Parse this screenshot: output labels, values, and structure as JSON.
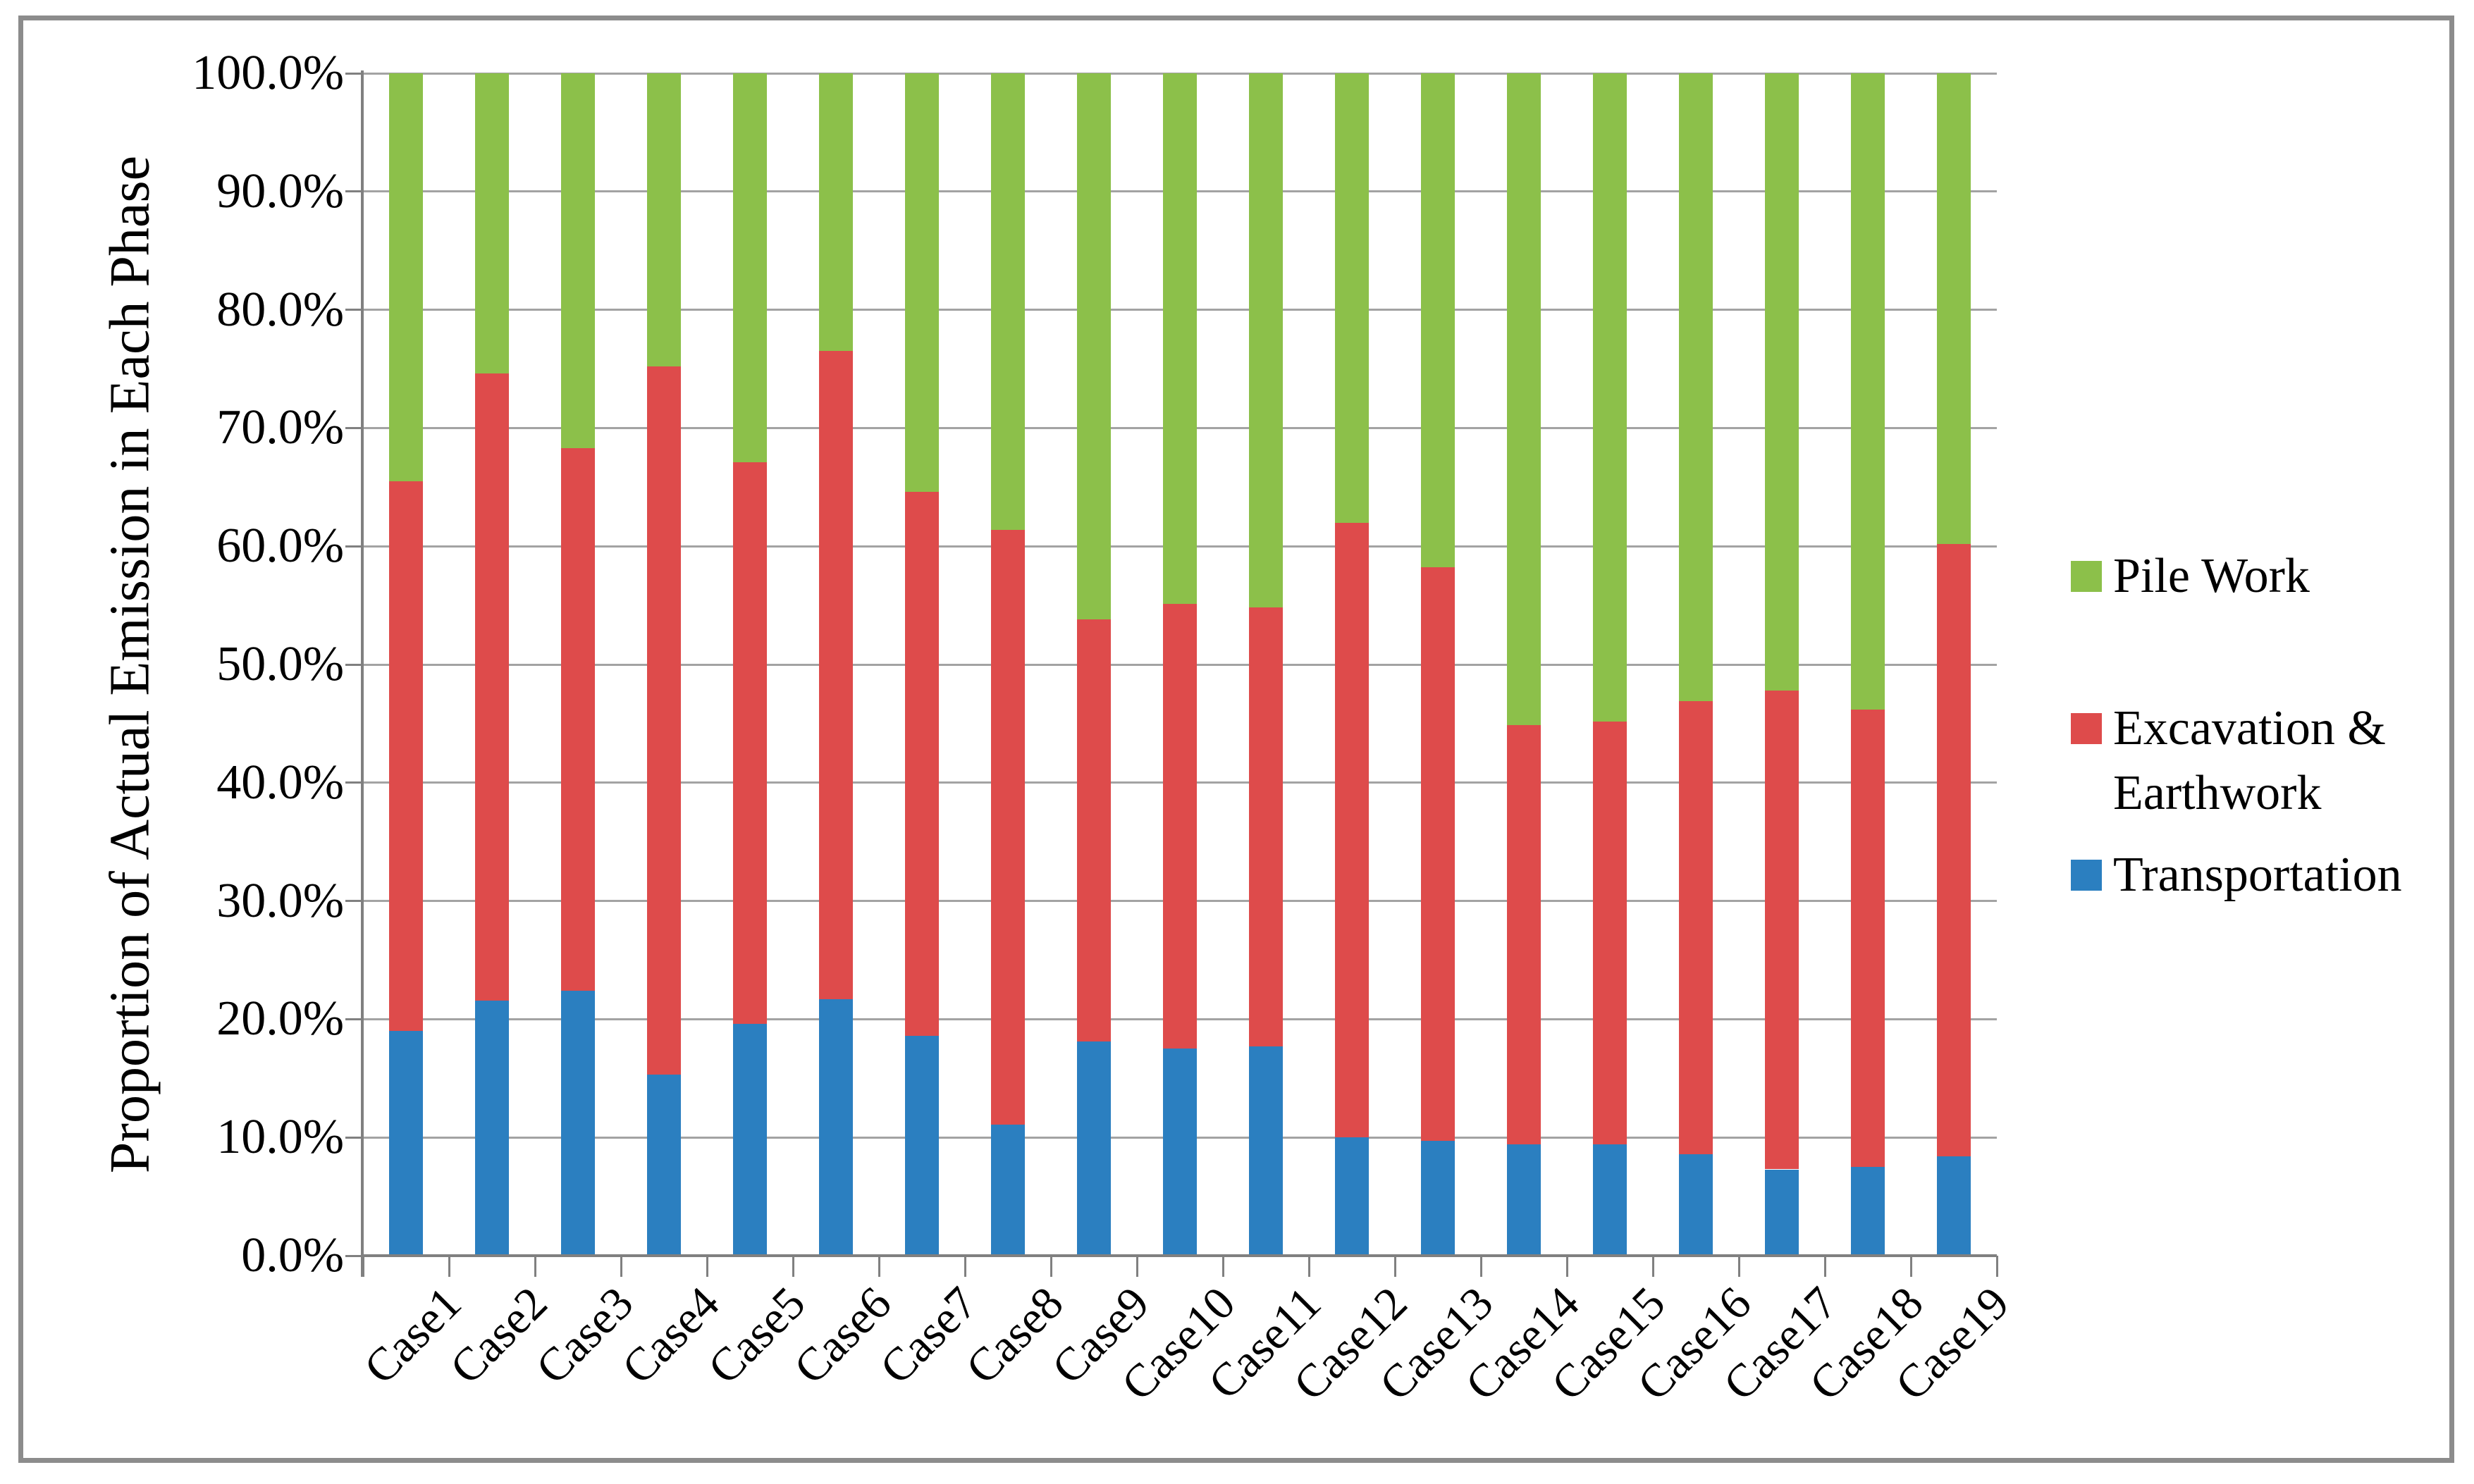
{
  "chart_data": {
    "type": "bar",
    "stacked": true,
    "title": "",
    "ylabel": "Proportion of Actual Emission in Each Phase",
    "xlabel": "",
    "ylim": [
      0,
      100
    ],
    "grid": "horizontal",
    "legend_position": "right",
    "y_tick_labels": [
      "0.0%",
      "10.0%",
      "20.0%",
      "30.0%",
      "40.0%",
      "50.0%",
      "60.0%",
      "70.0%",
      "80.0%",
      "90.0%",
      "100.0%"
    ],
    "categories": [
      "Case1",
      "Case2",
      "Case3",
      "Case4",
      "Case5",
      "Case6",
      "Case7",
      "Case8",
      "Case9",
      "Case10",
      "Case11",
      "Case12",
      "Case13",
      "Case14",
      "Case15",
      "Case16",
      "Case17",
      "Case18",
      "Case19"
    ],
    "series": [
      {
        "name": "Transportation",
        "color": "#2B7FC0",
        "values": [
          19.0,
          21.6,
          22.4,
          15.3,
          19.6,
          21.7,
          18.6,
          11.1,
          18.1,
          17.5,
          17.7,
          10.0,
          9.7,
          9.4,
          9.4,
          8.6,
          7.3,
          7.5,
          8.4
        ]
      },
      {
        "name": "Excavation & Earthwork",
        "color": "#DE4B4B",
        "values": [
          46.5,
          53.0,
          45.9,
          59.9,
          47.5,
          54.8,
          46.0,
          50.3,
          35.7,
          37.6,
          37.1,
          52.0,
          48.5,
          35.5,
          35.8,
          38.3,
          40.5,
          38.7,
          51.8
        ]
      },
      {
        "name": "Pile Work",
        "color": "#8CC04A",
        "values": [
          34.5,
          25.4,
          31.7,
          24.8,
          32.9,
          23.5,
          35.4,
          38.6,
          46.2,
          44.9,
          45.2,
          38.0,
          41.8,
          55.1,
          54.8,
          53.1,
          52.2,
          53.8,
          39.8
        ]
      }
    ],
    "legend": [
      {
        "series": "Pile Work",
        "lines": [
          "Pile Work"
        ]
      },
      {
        "series": "Excavation & Earthwork",
        "lines": [
          "Excavation &",
          "Earthwork"
        ]
      },
      {
        "series": "Transportation",
        "lines": [
          "Transportation"
        ]
      }
    ],
    "colors": {
      "gridline": "#a3a3a3",
      "axis": "#808080",
      "frame_border": "#8c8c8c",
      "background": "#ffffff",
      "text": "#000000"
    }
  }
}
